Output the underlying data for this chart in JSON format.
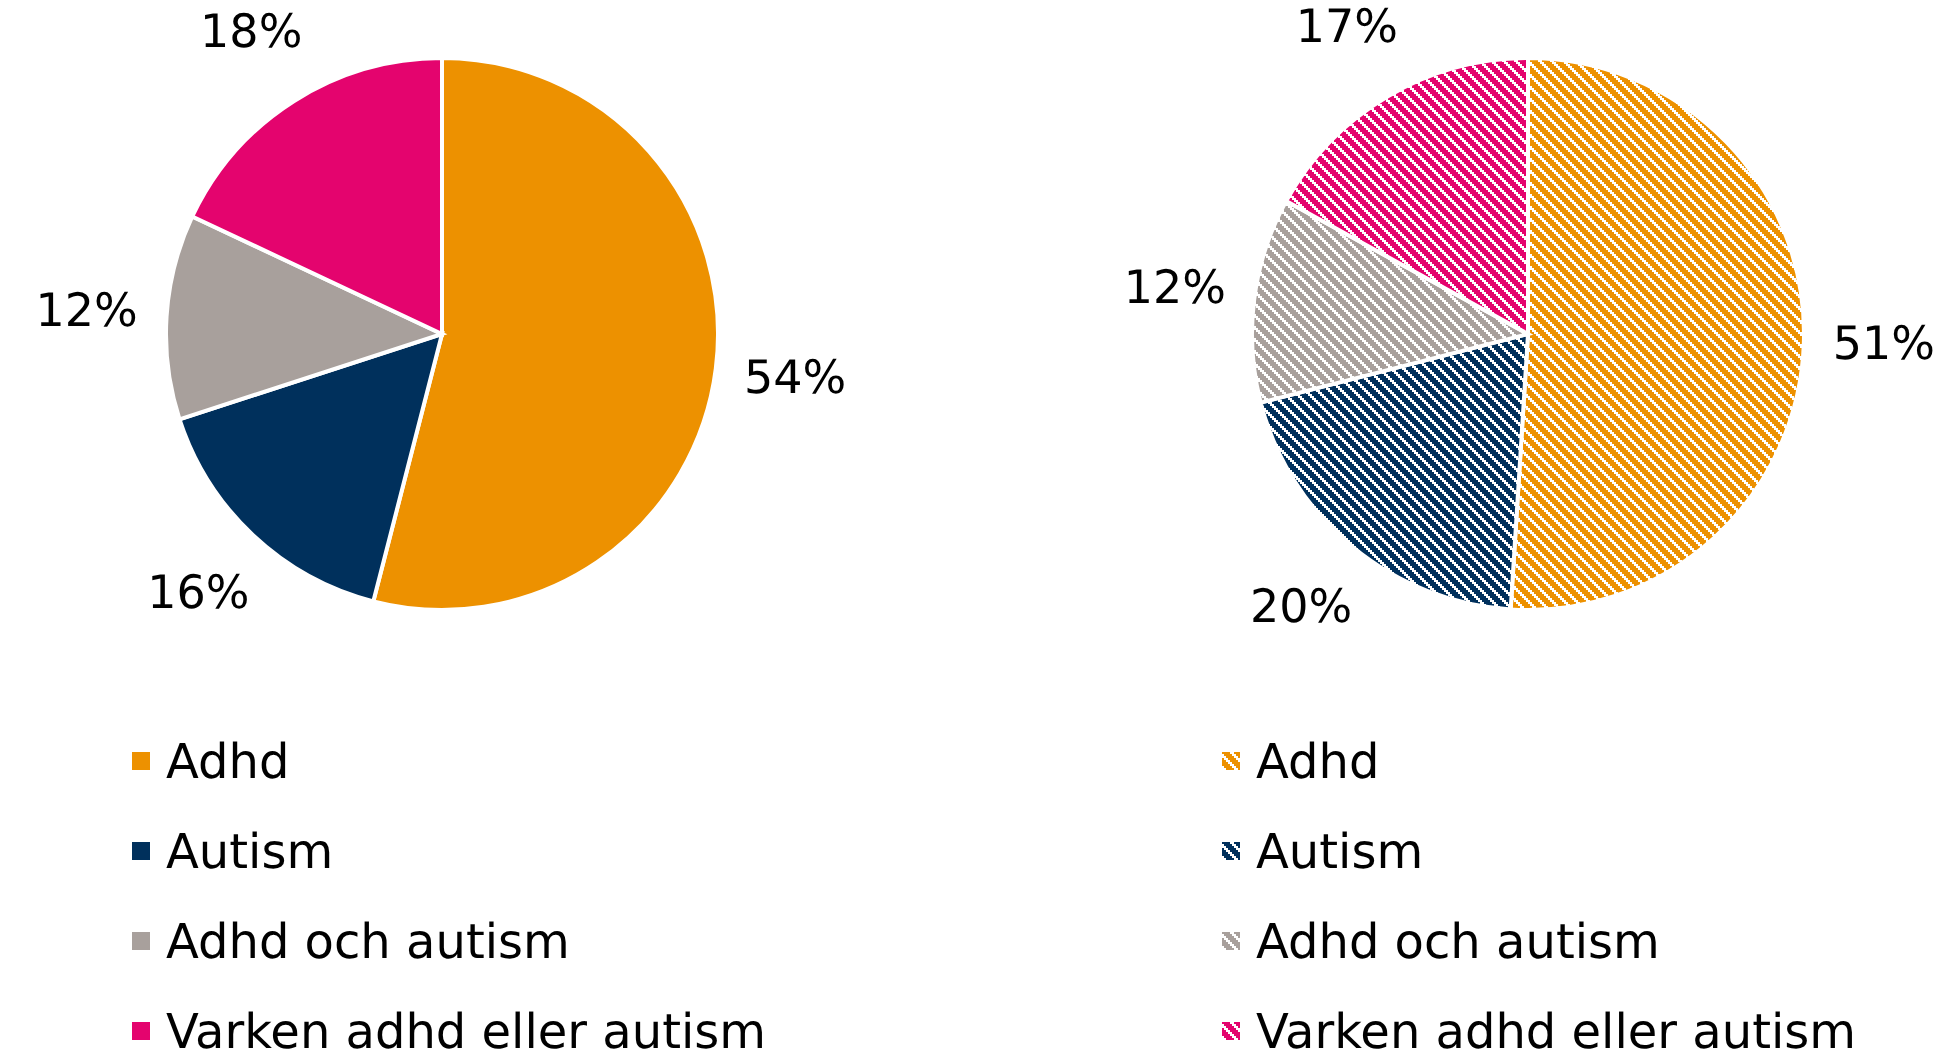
{
  "chart_data": [
    {
      "type": "pie",
      "categories": [
        "Adhd",
        "Autism",
        "Adhd och autism",
        "Varken adhd eller autism"
      ],
      "values": [
        54,
        16,
        12,
        18
      ],
      "colors": [
        "#ed9100",
        "#00305c",
        "#a8a09c",
        "#e4046e"
      ],
      "value_labels": [
        "54%",
        "16%",
        "12%",
        "18%"
      ],
      "legend": "bottom"
    },
    {
      "type": "pie",
      "categories": [
        "Adhd",
        "Autism",
        "Adhd och autism",
        "Varken adhd eller autism"
      ],
      "values": [
        51,
        20,
        12,
        17
      ],
      "colors": [
        "#ed9100",
        "#00305c",
        "#a8a09c",
        "#e4046e"
      ],
      "value_labels": [
        "51%",
        "20%",
        "12%",
        "17%"
      ],
      "legend": "bottom"
    }
  ]
}
